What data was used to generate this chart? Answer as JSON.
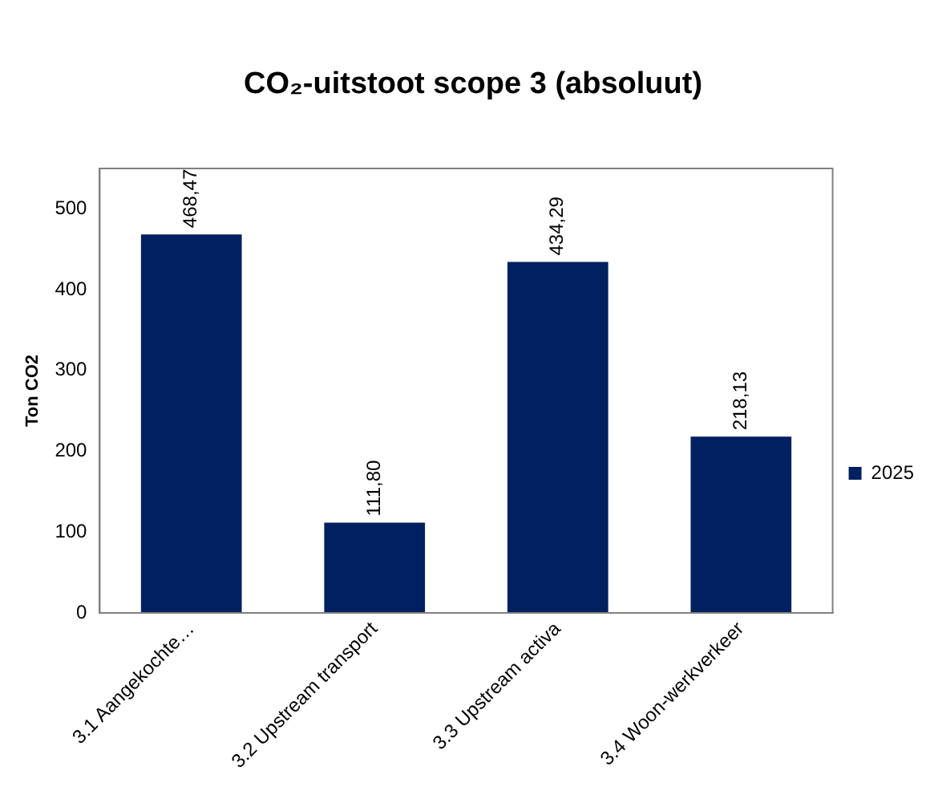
{
  "chart_data": {
    "type": "bar",
    "title": "CO₂-uitstoot scope 3 (absoluut)",
    "ylabel": "Ton CO2",
    "categories": [
      "3.1 Aangekochte…",
      "3.2 Upstream transport",
      "3.3 Upstream activa",
      "3.4 Woon-werkverkeer"
    ],
    "series": [
      {
        "name": "2025",
        "color": "#002060",
        "values": [
          468.47,
          111.8,
          434.29,
          218.13
        ],
        "value_labels": [
          "468,47",
          "111,80",
          "434,29",
          "218,13"
        ]
      }
    ],
    "ylim": [
      0,
      550
    ],
    "yticks": [
      0,
      100,
      200,
      300,
      400,
      500
    ],
    "grid": false,
    "legend": "right"
  }
}
